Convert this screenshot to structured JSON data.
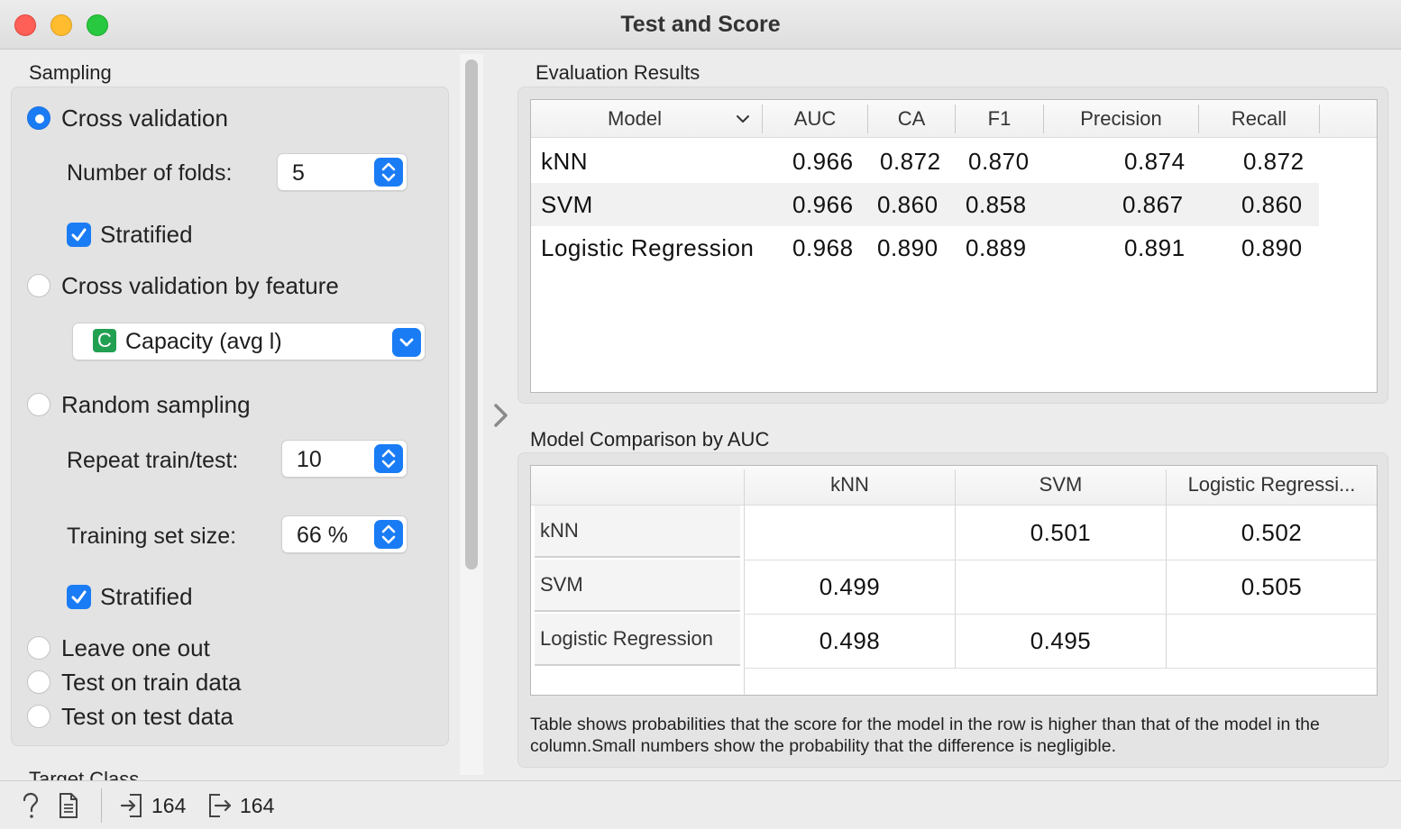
{
  "window": {
    "title": "Test and Score"
  },
  "sampling": {
    "section_title": "Sampling",
    "cross_validation": {
      "label": "Cross validation",
      "checked": true
    },
    "folds_label": "Number of folds:",
    "folds_value": "5",
    "stratified_1": "Stratified",
    "cv_by_feature": {
      "label": "Cross validation by feature",
      "checked": false
    },
    "feature_combo": {
      "badge": "C",
      "value": "Capacity (avg l)"
    },
    "random_sampling": {
      "label": "Random sampling",
      "checked": false
    },
    "repeat_label": "Repeat train/test:",
    "repeat_value": "10",
    "train_size_label": "Training set size:",
    "train_size_value": "66 %",
    "stratified_2": "Stratified",
    "leave_one_out": {
      "label": "Leave one out",
      "checked": false
    },
    "test_on_train": {
      "label": "Test on train data",
      "checked": false
    },
    "test_on_test": {
      "label": "Test on test data",
      "checked": false
    }
  },
  "target_class_label": "Target Class",
  "evaluation": {
    "title": "Evaluation Results",
    "columns": [
      "Model",
      "AUC",
      "CA",
      "F1",
      "Precision",
      "Recall"
    ],
    "rows": [
      {
        "model": "kNN",
        "auc": "0.966",
        "ca": "0.872",
        "f1": "0.870",
        "precision": "0.874",
        "recall": "0.872"
      },
      {
        "model": "SVM",
        "auc": "0.966",
        "ca": "0.860",
        "f1": "0.858",
        "precision": "0.867",
        "recall": "0.860"
      },
      {
        "model": "Logistic Regression",
        "auc": "0.968",
        "ca": "0.890",
        "f1": "0.889",
        "precision": "0.891",
        "recall": "0.890"
      }
    ]
  },
  "comparison": {
    "title": "Model Comparison by AUC",
    "columns": [
      "kNN",
      "SVM",
      "Logistic Regressi..."
    ],
    "rows": [
      {
        "label": "kNN",
        "cells": [
          "",
          "0.501",
          "0.502"
        ]
      },
      {
        "label": "SVM",
        "cells": [
          "0.499",
          "",
          "0.505"
        ]
      },
      {
        "label": "Logistic Regression",
        "cells": [
          "0.498",
          "0.495",
          ""
        ]
      }
    ],
    "note": "Table shows probabilities that the score for the model in the row is higher than that of the model in the column.Small numbers show the probability that the difference is negligible."
  },
  "status": {
    "input_count": "164",
    "output_count": "164"
  },
  "colors": {
    "accent": "#1a7cf5",
    "badge_green": "#22a052"
  }
}
